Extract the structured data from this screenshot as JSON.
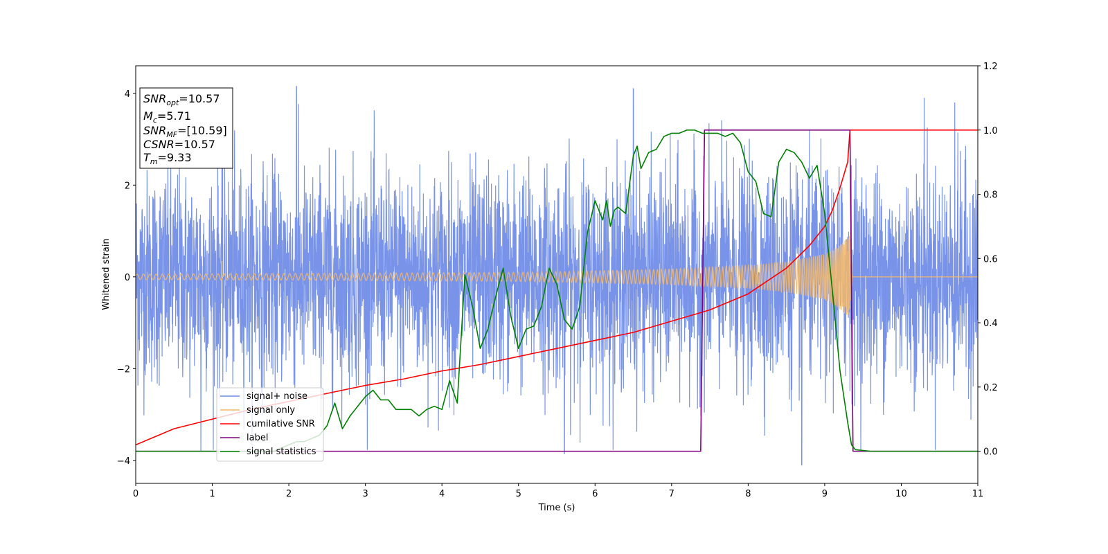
{
  "chart_data": {
    "type": "line",
    "xlabel": "Time (s)",
    "ylabel": "Whitened strain",
    "xlim": [
      0,
      11
    ],
    "ylim_left": [
      -4.5,
      4.6
    ],
    "ylim_right": [
      -0.1,
      1.2
    ],
    "x_ticks": [
      "0",
      "1",
      "2",
      "3",
      "4",
      "5",
      "6",
      "7",
      "8",
      "9",
      "10",
      "11"
    ],
    "y_ticks_left": [
      "−4",
      "−2",
      "0",
      "2",
      "4"
    ],
    "y_ticks_right": [
      "0.0",
      "0.2",
      "0.4",
      "0.6",
      "0.8",
      "1.0",
      "1.2"
    ],
    "legend_position": "lower-left",
    "annotations": {
      "snr_opt": {
        "base": "SNR",
        "sub": "opt",
        "value": "=10.57"
      },
      "mc": {
        "base": "M",
        "sub": "c",
        "value": "=5.71"
      },
      "snr_mf": {
        "base": "SNR",
        "sub": "MF",
        "value": "=[10.59]"
      },
      "csnr": {
        "base": "CSNR",
        "value": "=10.57"
      },
      "tm": {
        "base": "T",
        "sub": "m",
        "value": "=9.33"
      }
    },
    "series": [
      {
        "name": "signal+ noise",
        "axis": "left",
        "color": "#6d8ae6",
        "kind": "noise",
        "envelope": {
          "std": 1.15,
          "range": [
            -4.1,
            4.2
          ]
        },
        "sample_peaks": [
          [
            0.85,
            -3.8
          ],
          [
            2.1,
            4.15
          ],
          [
            5.6,
            -3.85
          ],
          [
            6.5,
            4.1
          ],
          [
            8.7,
            -4.1
          ],
          [
            10.3,
            3.9
          ],
          [
            10.7,
            3.8
          ]
        ]
      },
      {
        "name": "signal only",
        "axis": "left",
        "color": "#f5b868",
        "kind": "chirp",
        "merger_time": 9.33,
        "amplitude_points": [
          [
            0,
            0.06
          ],
          [
            3,
            0.08
          ],
          [
            5,
            0.1
          ],
          [
            6,
            0.13
          ],
          [
            7,
            0.17
          ],
          [
            8,
            0.25
          ],
          [
            8.5,
            0.33
          ],
          [
            9.0,
            0.5
          ],
          [
            9.2,
            0.7
          ],
          [
            9.33,
            0.95
          ],
          [
            9.36,
            0.0
          ],
          [
            11,
            0.0
          ]
        ]
      },
      {
        "name": "cumilative SNR",
        "axis": "right",
        "color": "#ff0000",
        "x": [
          0,
          0.5,
          1,
          1.5,
          2,
          2.5,
          3,
          3.5,
          4,
          4.5,
          5,
          5.5,
          6,
          6.5,
          7,
          7.5,
          8,
          8.5,
          8.8,
          9.0,
          9.1,
          9.2,
          9.3,
          9.33,
          11
        ],
        "y": [
          0.02,
          0.07,
          0.1,
          0.13,
          0.155,
          0.18,
          0.205,
          0.225,
          0.25,
          0.27,
          0.295,
          0.32,
          0.345,
          0.37,
          0.405,
          0.44,
          0.49,
          0.57,
          0.64,
          0.7,
          0.75,
          0.82,
          0.9,
          1.0,
          1.0
        ]
      },
      {
        "name": "label",
        "axis": "right",
        "color": "#800080",
        "x": [
          0,
          7.38,
          7.43,
          9.33,
          9.37,
          11
        ],
        "y": [
          0,
          0,
          1,
          1,
          0,
          0
        ]
      },
      {
        "name": "signal statistics",
        "axis": "right",
        "color": "#008000",
        "x": [
          0,
          1.8,
          2.0,
          2.1,
          2.2,
          2.3,
          2.4,
          2.5,
          2.6,
          2.7,
          2.8,
          2.9,
          3.0,
          3.1,
          3.2,
          3.3,
          3.4,
          3.5,
          3.6,
          3.7,
          3.8,
          3.9,
          4.0,
          4.1,
          4.2,
          4.3,
          4.4,
          4.5,
          4.6,
          4.7,
          4.8,
          4.9,
          5.0,
          5.1,
          5.2,
          5.3,
          5.4,
          5.5,
          5.6,
          5.7,
          5.8,
          5.9,
          6.0,
          6.1,
          6.15,
          6.2,
          6.25,
          6.3,
          6.4,
          6.5,
          6.55,
          6.6,
          6.7,
          6.8,
          6.9,
          7.0,
          7.1,
          7.2,
          7.3,
          7.4,
          7.5,
          7.6,
          7.7,
          7.8,
          7.9,
          8.0,
          8.1,
          8.2,
          8.3,
          8.4,
          8.5,
          8.6,
          8.7,
          8.8,
          8.9,
          9.0,
          9.1,
          9.2,
          9.3,
          9.35,
          9.4,
          9.6,
          11
        ],
        "y": [
          0,
          0,
          0.02,
          0.03,
          0.03,
          0.04,
          0.05,
          0.08,
          0.15,
          0.07,
          0.11,
          0.14,
          0.17,
          0.19,
          0.16,
          0.16,
          0.13,
          0.13,
          0.13,
          0.11,
          0.13,
          0.14,
          0.13,
          0.22,
          0.15,
          0.55,
          0.45,
          0.32,
          0.38,
          0.48,
          0.57,
          0.42,
          0.32,
          0.38,
          0.39,
          0.45,
          0.57,
          0.52,
          0.41,
          0.38,
          0.45,
          0.68,
          0.78,
          0.72,
          0.78,
          0.7,
          0.75,
          0.76,
          0.74,
          0.92,
          0.95,
          0.88,
          0.93,
          0.94,
          0.98,
          0.99,
          0.99,
          1.0,
          1.0,
          0.99,
          0.99,
          0.99,
          0.98,
          0.99,
          0.96,
          0.87,
          0.84,
          0.74,
          0.73,
          0.9,
          0.94,
          0.93,
          0.9,
          0.85,
          0.89,
          0.74,
          0.5,
          0.25,
          0.09,
          0.02,
          0.005,
          0.0,
          0.0
        ]
      }
    ]
  }
}
